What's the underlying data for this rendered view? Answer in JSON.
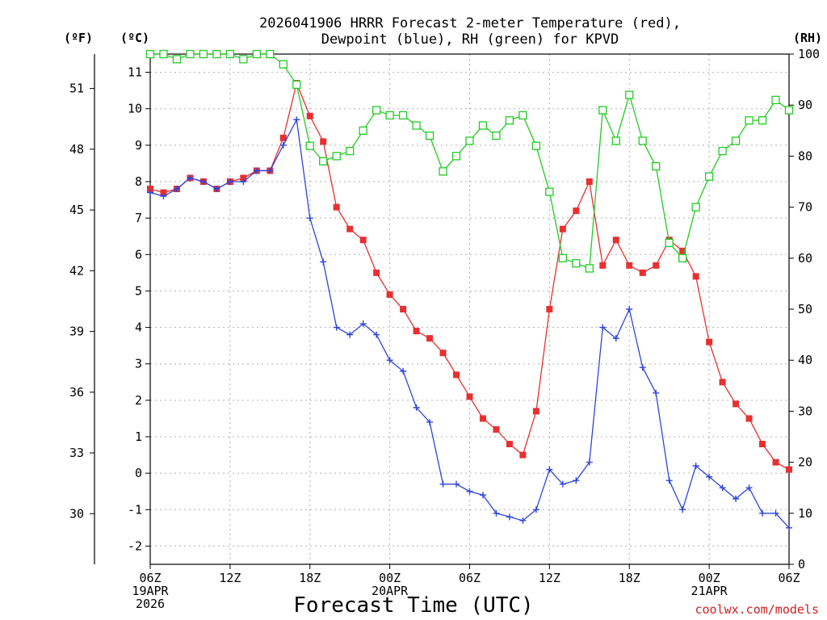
{
  "chart_data": {
    "type": "line",
    "title_lines": [
      "2026041906 HRRR Forecast 2-meter Temperature (red),",
      "Dewpoint (blue), RH (green) for KPVD"
    ],
    "xlabel": "Forecast Time (UTC)",
    "credit": "coolwx.com/models",
    "credit_color": "#cc2222",
    "units": {
      "f": "(ºF)",
      "c": "(ºC)",
      "rh": "(RH)"
    },
    "x_ticks": [
      {
        "hour": 0,
        "lines": [
          "06Z",
          "19APR",
          "2026"
        ]
      },
      {
        "hour": 6,
        "lines": [
          "12Z"
        ]
      },
      {
        "hour": 12,
        "lines": [
          "18Z"
        ]
      },
      {
        "hour": 18,
        "lines": [
          "00Z",
          "20APR"
        ]
      },
      {
        "hour": 24,
        "lines": [
          "06Z"
        ]
      },
      {
        "hour": 30,
        "lines": [
          "12Z"
        ]
      },
      {
        "hour": 36,
        "lines": [
          "18Z"
        ]
      },
      {
        "hour": 42,
        "lines": [
          "00Z",
          "21APR"
        ]
      },
      {
        "hour": 48,
        "lines": [
          "06Z"
        ]
      }
    ],
    "xlim": [
      0,
      48
    ],
    "ylim_c": [
      -2.5,
      11.5
    ],
    "ylim_rh": [
      0,
      100
    ],
    "y_ticks_c": [
      "-2",
      "-1",
      "0",
      "1",
      "2",
      "3",
      "4",
      "5",
      "6",
      "7",
      "8",
      "9",
      "10",
      "11"
    ],
    "y_ticks_f": [
      "30",
      "33",
      "36",
      "39",
      "42",
      "45",
      "48",
      "51"
    ],
    "y_ticks_rh": [
      "0",
      "10",
      "20",
      "30",
      "40",
      "50",
      "60",
      "70",
      "80",
      "90",
      "100"
    ],
    "series": [
      {
        "name": "Temperature",
        "color": "#e83030",
        "marker": "filled-square",
        "axis": "c",
        "values": [
          7.8,
          7.7,
          7.8,
          8.1,
          8.0,
          7.8,
          8.0,
          8.1,
          8.3,
          8.3,
          9.2,
          10.7,
          9.8,
          9.1,
          7.3,
          6.7,
          6.4,
          5.5,
          4.9,
          4.5,
          3.9,
          3.7,
          3.3,
          2.7,
          2.1,
          1.5,
          1.2,
          0.8,
          0.5,
          1.7,
          4.5,
          6.7,
          7.2,
          8.0,
          5.7,
          6.4,
          5.7,
          5.5,
          5.7,
          6.4,
          6.1,
          5.4,
          3.6,
          2.5,
          1.9,
          1.5,
          0.8,
          0.3,
          0.1
        ]
      },
      {
        "name": "Dewpoint",
        "color": "#2d45dd",
        "marker": "plus",
        "axis": "c",
        "values": [
          7.7,
          7.6,
          7.8,
          8.1,
          8.0,
          7.8,
          8.0,
          8.0,
          8.3,
          8.3,
          9.0,
          9.7,
          7.0,
          5.8,
          4.0,
          3.8,
          4.1,
          3.8,
          3.1,
          2.8,
          1.8,
          1.4,
          -0.3,
          -0.3,
          -0.5,
          -0.6,
          -1.1,
          -1.2,
          -1.3,
          -1.0,
          0.1,
          -0.3,
          -0.2,
          0.3,
          4.0,
          3.7,
          4.5,
          2.9,
          2.2,
          -0.2,
          -1.0,
          0.2,
          -0.1,
          -0.4,
          -0.7,
          -0.4,
          -1.1,
          -1.1,
          -1.5
        ]
      },
      {
        "name": "RH",
        "color": "#22cc22",
        "marker": "open-square",
        "axis": "rh",
        "values": [
          100,
          100,
          99,
          100,
          100,
          100,
          100,
          99,
          100,
          100,
          98,
          94,
          82,
          79,
          80,
          81,
          85,
          89,
          88,
          88,
          86,
          84,
          77,
          80,
          83,
          86,
          84,
          87,
          88,
          82,
          73,
          60,
          59,
          58,
          89,
          83,
          92,
          83,
          78,
          63,
          60,
          70,
          76,
          81,
          83,
          87,
          87,
          91,
          89
        ]
      }
    ]
  }
}
